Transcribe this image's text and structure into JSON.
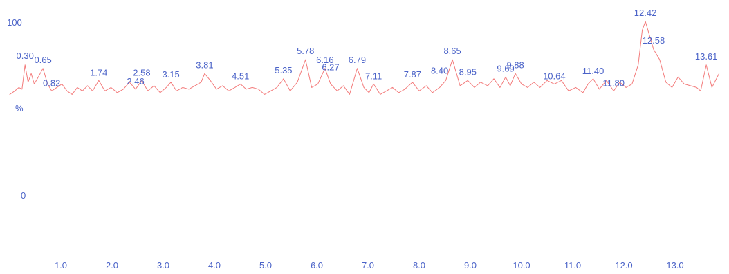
{
  "chart_data": {
    "type": "line",
    "title": "",
    "xlabel": "",
    "ylabel": "%",
    "ylim": [
      0,
      100
    ],
    "xlim": [
      0.0,
      14.0
    ],
    "grid": false,
    "legend": "none",
    "colors": {
      "line": "#f26d6d",
      "text": "#4b63c8"
    },
    "y_ticks": [
      "100",
      "0"
    ],
    "x_ticks": [
      {
        "value": 1.0,
        "label": "1.0"
      },
      {
        "value": 2.0,
        "label": "2.0"
      },
      {
        "value": 3.0,
        "label": "3.0"
      },
      {
        "value": 4.0,
        "label": "4.0"
      },
      {
        "value": 5.0,
        "label": "5.0"
      },
      {
        "value": 6.0,
        "label": "6.0"
      },
      {
        "value": 7.0,
        "label": "7.0"
      },
      {
        "value": 8.0,
        "label": "8.0"
      },
      {
        "value": 9.0,
        "label": "9.0"
      },
      {
        "value": 10.0,
        "label": "10.0"
      },
      {
        "value": 11.0,
        "label": "11.0"
      },
      {
        "value": 12.0,
        "label": "12.0"
      },
      {
        "value": 13.0,
        "label": "13.0"
      }
    ],
    "series": [
      {
        "x": [
          0.0,
          0.1,
          0.18,
          0.24,
          0.3,
          0.36,
          0.42,
          0.48,
          0.56,
          0.65,
          0.74,
          0.82,
          0.92,
          1.02,
          1.12,
          1.22,
          1.32,
          1.42,
          1.52,
          1.62,
          1.74,
          1.86,
          1.98,
          2.1,
          2.22,
          2.34,
          2.46,
          2.58,
          2.7,
          2.82,
          2.94,
          3.06,
          3.15,
          3.26,
          3.38,
          3.5,
          3.62,
          3.74,
          3.81,
          3.92,
          4.04,
          4.16,
          4.28,
          4.4,
          4.51,
          4.62,
          4.74,
          4.86,
          4.98,
          5.1,
          5.22,
          5.35,
          5.48,
          5.62,
          5.78,
          5.9,
          6.02,
          6.16,
          6.27,
          6.4,
          6.52,
          6.64,
          6.79,
          6.92,
          7.02,
          7.11,
          7.24,
          7.36,
          7.48,
          7.6,
          7.72,
          7.87,
          8.0,
          8.14,
          8.26,
          8.4,
          8.52,
          8.65,
          8.8,
          8.95,
          9.08,
          9.2,
          9.34,
          9.46,
          9.58,
          9.69,
          9.78,
          9.88,
          10.0,
          10.12,
          10.24,
          10.36,
          10.5,
          10.64,
          10.78,
          10.92,
          11.06,
          11.2,
          11.3,
          11.4,
          11.52,
          11.66,
          11.8,
          11.92,
          12.04,
          12.16,
          12.28,
          12.36,
          12.42,
          12.5,
          12.58,
          12.7,
          12.82,
          12.94,
          13.06,
          13.18,
          13.3,
          13.42,
          13.5,
          13.61,
          13.72,
          13.86
        ],
        "y": [
          58,
          60,
          62,
          61,
          75,
          65,
          70,
          64,
          68,
          73,
          64,
          60,
          62,
          64,
          60,
          58,
          62,
          60,
          63,
          60,
          66,
          60,
          62,
          59,
          61,
          65,
          61,
          66,
          60,
          63,
          59,
          62,
          65,
          60,
          62,
          61,
          63,
          65,
          70,
          66,
          61,
          63,
          60,
          62,
          64,
          61,
          62,
          61,
          58,
          60,
          62,
          67,
          60,
          65,
          78,
          62,
          64,
          73,
          64,
          60,
          63,
          58,
          73,
          62,
          59,
          64,
          58,
          60,
          62,
          59,
          61,
          65,
          60,
          63,
          59,
          62,
          66,
          78,
          63,
          66,
          62,
          65,
          63,
          67,
          62,
          68,
          63,
          70,
          64,
          62,
          65,
          62,
          66,
          64,
          66,
          60,
          62,
          59,
          64,
          67,
          61,
          66,
          60,
          65,
          62,
          64,
          75,
          95,
          100,
          92,
          84,
          78,
          65,
          62,
          68,
          64,
          63,
          62,
          60,
          75,
          62,
          70
        ]
      }
    ],
    "peak_labels": [
      {
        "x": 0.3,
        "text": "0.30"
      },
      {
        "x": 0.65,
        "text": "0.65"
      },
      {
        "x": 0.82,
        "text": "0.82"
      },
      {
        "x": 1.74,
        "text": "1.74"
      },
      {
        "x": 2.46,
        "text": "2.46"
      },
      {
        "x": 2.58,
        "text": "2.58"
      },
      {
        "x": 3.15,
        "text": "3.15"
      },
      {
        "x": 3.81,
        "text": "3.81"
      },
      {
        "x": 4.51,
        "text": "4.51"
      },
      {
        "x": 5.35,
        "text": "5.35"
      },
      {
        "x": 5.78,
        "text": "5.78"
      },
      {
        "x": 6.16,
        "text": "6.16"
      },
      {
        "x": 6.27,
        "text": "6.27"
      },
      {
        "x": 6.79,
        "text": "6.79"
      },
      {
        "x": 7.11,
        "text": "7.11"
      },
      {
        "x": 7.87,
        "text": "7.87"
      },
      {
        "x": 8.4,
        "text": "8.40"
      },
      {
        "x": 8.65,
        "text": "8.65"
      },
      {
        "x": 8.95,
        "text": "8.95"
      },
      {
        "x": 9.69,
        "text": "9.69"
      },
      {
        "x": 9.88,
        "text": "9.88"
      },
      {
        "x": 10.64,
        "text": "10.64"
      },
      {
        "x": 11.4,
        "text": "11.40"
      },
      {
        "x": 11.8,
        "text": "11.80"
      },
      {
        "x": 12.42,
        "text": "12.42"
      },
      {
        "x": 12.58,
        "text": "12.58"
      },
      {
        "x": 13.61,
        "text": "13.61"
      }
    ]
  }
}
